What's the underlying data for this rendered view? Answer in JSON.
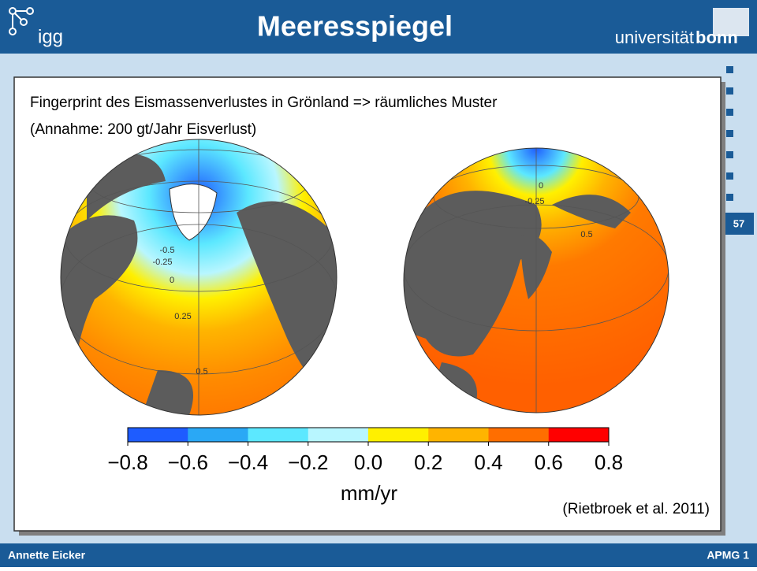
{
  "header": {
    "title": "Meeresspiegel",
    "logo_left": "igg",
    "logo_right_a": "universität",
    "logo_right_b": "bonn"
  },
  "slide_number": "57",
  "content": {
    "line1": "Fingerprint des Eismassenverlustes in Grönland => räumliches Muster",
    "line2": "(Annahme: 200 gt/Jahr Eisverlust)",
    "citation": "(Rietbroek et al. 2011)"
  },
  "globes": {
    "left_labels": [
      "0",
      "-0.25",
      "-0.5",
      "0.25",
      "0.5"
    ],
    "right_labels": [
      "0",
      "-0.25",
      "0.5"
    ]
  },
  "colorbar": {
    "colors": [
      "#1e5cff",
      "#2aa8f5",
      "#5ce8ff",
      "#b8f6ff",
      "#fff000",
      "#ffb400",
      "#ff6e00",
      "#ff0000"
    ],
    "ticks": [
      {
        "value": -0.8,
        "label": "−0.8"
      },
      {
        "value": -0.6,
        "label": "−0.6"
      },
      {
        "value": -0.4,
        "label": "−0.4"
      },
      {
        "value": -0.2,
        "label": "−0.2"
      },
      {
        "value": 0,
        "label": "0.0"
      },
      0.2,
      0.4,
      0.6,
      0.8
    ],
    "unit": "mm/yr"
  },
  "footer": {
    "author": "Annette Eicker",
    "course": "APMG 1"
  }
}
